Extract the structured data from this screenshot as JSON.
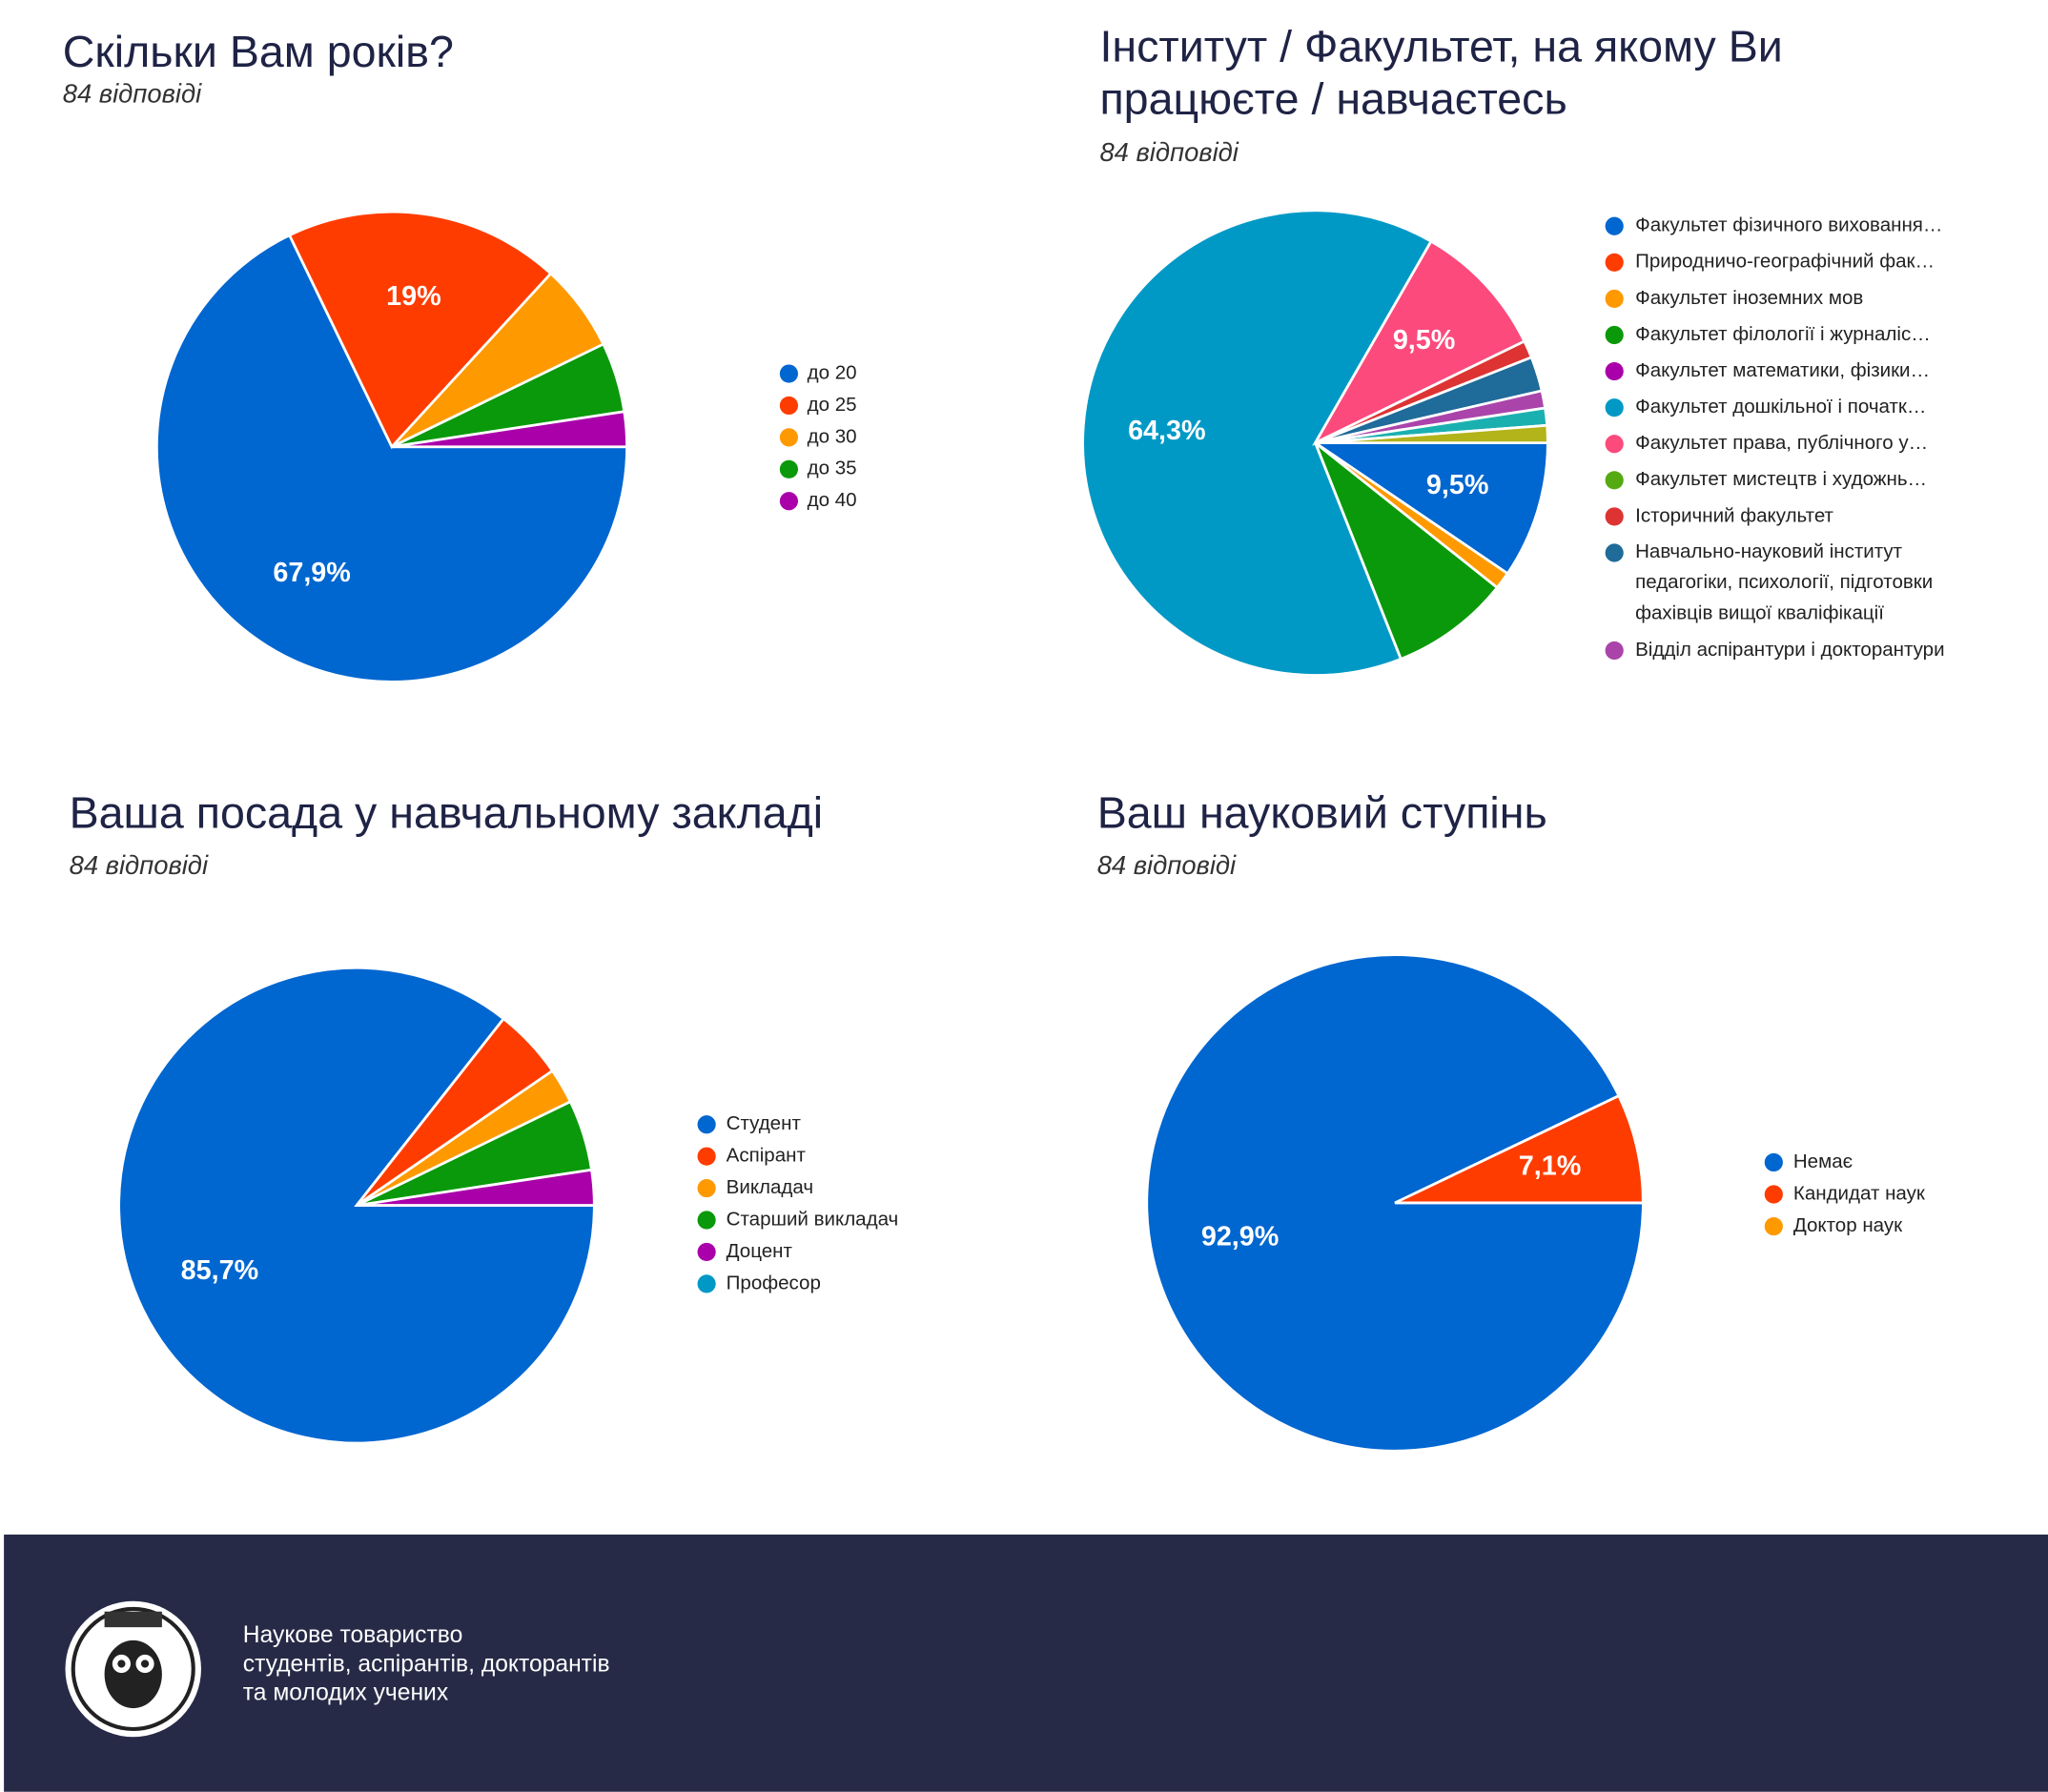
{
  "chart_data": [
    {
      "type": "pie",
      "title": [
        "Скільки Вам років?"
      ],
      "subtitle": "84 відповіді",
      "categories": [
        "до 20",
        "до 25",
        "до 30",
        "до 35",
        "до 40"
      ],
      "values": [
        67.9,
        19,
        6,
        4.8,
        2.4
      ],
      "value_labels": [
        "67,9%",
        "19%",
        null,
        null,
        null
      ],
      "colors": [
        "#0066d0",
        "#ff3c00",
        "#ff9900",
        "#0a990a",
        "#aa00aa"
      ]
    },
    {
      "type": "pie",
      "title": [
        "Інститут / Факультет, на якому Ви",
        "працюєте / навчаєтесь"
      ],
      "subtitle": "84 відповіді",
      "categories": [
        "Факультет фізичного виховання…",
        "Природничо-географічний фак…",
        "Факультет іноземних мов",
        "Факультет філології і журналіс…",
        "Факультет математики, фізики…",
        "Факультет дошкільної і початк…",
        "Факультет права, публічного у…",
        "Факультет мистецтв і художнь…",
        "Історичний факультет",
        "Навчально-науковий інститут педагогіки, психології, підготовки фахівців вищої кваліфікації",
        "Відділ аспірантури і докторантури",
        null,
        null
      ],
      "values": [
        9.5,
        0,
        1.2,
        8.3,
        0,
        64.3,
        9.5,
        0,
        1.2,
        2.4,
        1.2,
        1.2,
        1.2
      ],
      "value_labels": [
        "9,5%",
        null,
        null,
        null,
        null,
        "64,3%",
        "9,5%",
        null,
        null,
        null,
        null,
        null,
        null
      ],
      "colors": [
        "#0066d0",
        "#ff3c00",
        "#ff9900",
        "#0a990a",
        "#aa00aa",
        "#0099c6",
        "#fc4a7d",
        "#55aa11",
        "#dd3333",
        "#1f6b99",
        "#aa44aa",
        "#1ab0b0",
        "#b3b31a"
      ]
    },
    {
      "type": "pie",
      "title": [
        "Ваша посада у навчальному закладі"
      ],
      "subtitle": "84 відповіді",
      "categories": [
        "Студент",
        "Аспірант",
        "Викладач",
        "Старший викладач",
        "Доцент",
        "Професор"
      ],
      "values": [
        85.7,
        4.8,
        2.4,
        4.8,
        2.4,
        0
      ],
      "value_labels": [
        "85,7%",
        null,
        null,
        null,
        null,
        null
      ],
      "colors": [
        "#0066d0",
        "#ff3c00",
        "#ff9900",
        "#0a990a",
        "#aa00aa",
        "#0099c6"
      ]
    },
    {
      "type": "pie",
      "title": [
        "Ваш науковий ступінь"
      ],
      "subtitle": "84 відповіді",
      "categories": [
        "Немає",
        "Кандидат наук",
        "Доктор наук"
      ],
      "values": [
        92.9,
        7.1,
        0
      ],
      "value_labels": [
        "92,9%",
        "7,1%",
        null
      ],
      "colors": [
        "#0066d0",
        "#ff3c00",
        "#ff9900"
      ]
    }
  ],
  "footer": {
    "lines": [
      "Наукове товариство",
      "студентів, аспірантів, докторантів",
      "та молодих учених"
    ]
  }
}
